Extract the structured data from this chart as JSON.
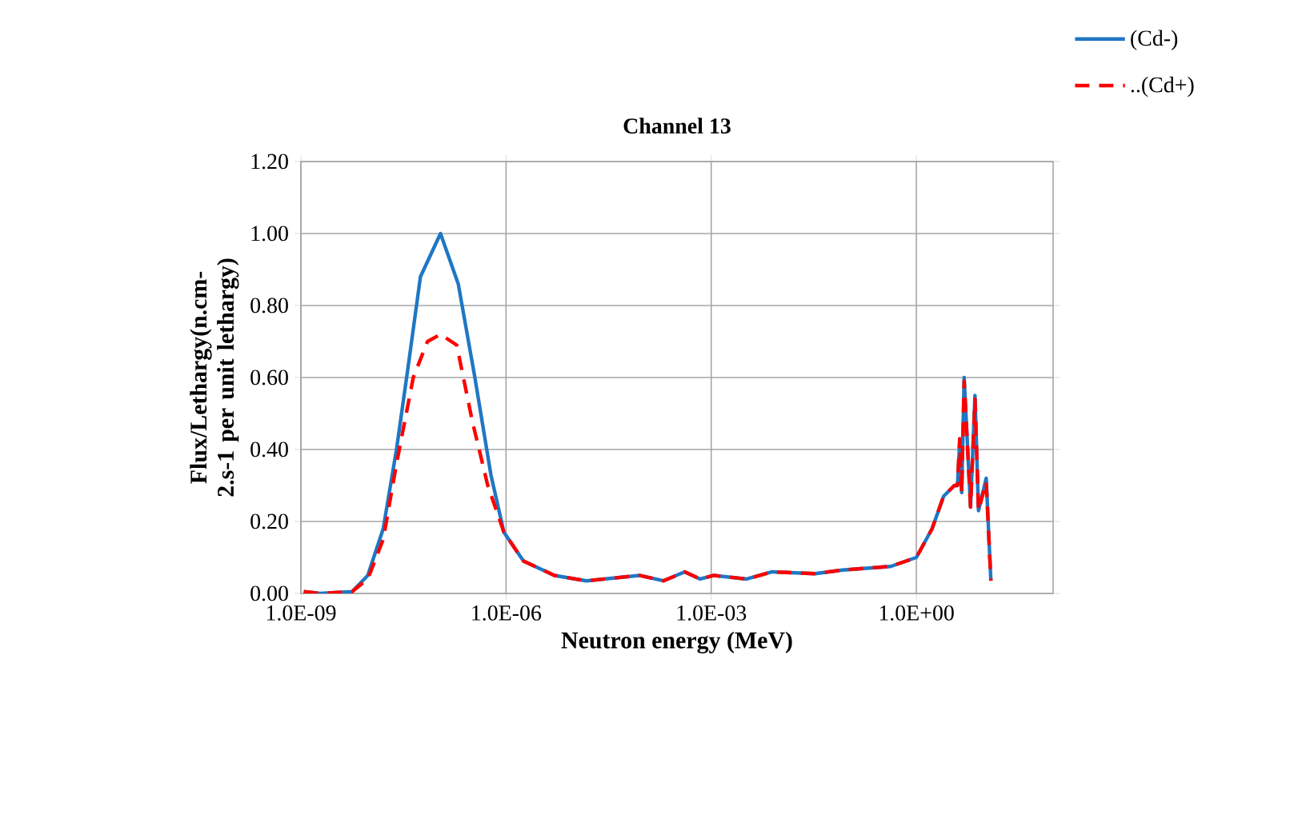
{
  "chart_data": {
    "type": "line",
    "title": "Channel 13",
    "xlabel": "Neutron energy (MeV)",
    "ylabel": "Flux/Lethargy(n.cm-2.s-1 per unit lethargy)",
    "log": "x",
    "xlim": [
      1e-09,
      100
    ],
    "ylim": [
      0,
      1.2
    ],
    "xticks": [
      {
        "value": 1e-09,
        "label": "1.0E-09"
      },
      {
        "value": 1e-06,
        "label": "1.0E-06"
      },
      {
        "value": 0.001,
        "label": "1.0E-03"
      },
      {
        "value": 1,
        "label": "1.0E+00"
      }
    ],
    "yticks": [
      {
        "value": 0,
        "label": "0.00"
      },
      {
        "value": 0.2,
        "label": "0.20"
      },
      {
        "value": 0.4,
        "label": "0.40"
      },
      {
        "value": 0.6,
        "label": "0.60"
      },
      {
        "value": 0.8,
        "label": "0.80"
      },
      {
        "value": 1.0,
        "label": "1.00"
      },
      {
        "value": 1.2,
        "label": "1.20"
      }
    ],
    "grid": true,
    "legend": "top right",
    "marker": "none",
    "series": [
      {
        "name": "(Cd-)",
        "color": "#1f77c4",
        "line_style": "solid",
        "x": [
          1.1e-09,
          1.9e-09,
          5.6e-09,
          9.5e-09,
          1.6e-08,
          2.5e-08,
          3.7e-08,
          5.6e-08,
          1.1e-07,
          2e-07,
          3.5e-07,
          6e-07,
          9.3e-07,
          1.8e-06,
          5.1e-06,
          1.5e-05,
          8.9e-05,
          0.0002,
          0.00041,
          0.00069,
          0.0011,
          0.0033,
          0.0078,
          0.033,
          0.083,
          0.42,
          1.0,
          1.7,
          2.5,
          3.6,
          4.0,
          4.3,
          4.6,
          5.0,
          6.2,
          7.2,
          8.1,
          10.5,
          12.3
        ],
        "values": [
          0.005,
          0,
          0.005,
          0.05,
          0.18,
          0.4,
          0.63,
          0.88,
          1.0,
          0.86,
          0.6,
          0.33,
          0.17,
          0.09,
          0.05,
          0.035,
          0.05,
          0.035,
          0.06,
          0.04,
          0.05,
          0.04,
          0.06,
          0.055,
          0.065,
          0.075,
          0.1,
          0.18,
          0.27,
          0.3,
          0.3,
          0.42,
          0.28,
          0.6,
          0.24,
          0.55,
          0.23,
          0.32,
          0.035
        ]
      },
      {
        "name": "..(Cd+)",
        "color": "#ff0000",
        "line_style": "dashed",
        "x": [
          1.1e-09,
          1.9e-09,
          5.6e-09,
          9.5e-09,
          1.6e-08,
          2.5e-08,
          4.4e-08,
          7.1e-08,
          1.1e-07,
          1.9e-07,
          3.2e-07,
          5.4e-07,
          9.3e-07,
          1.8e-06,
          5.1e-06,
          1.5e-05,
          8.9e-05,
          0.0002,
          0.00041,
          0.00069,
          0.0011,
          0.0033,
          0.0078,
          0.033,
          0.083,
          0.42,
          1.0,
          1.7,
          2.5,
          3.6,
          4.0,
          4.3,
          4.6,
          5.0,
          6.2,
          7.2,
          8.1,
          10.5,
          12.3
        ],
        "values": [
          0.005,
          0,
          0.005,
          0.04,
          0.15,
          0.36,
          0.6,
          0.7,
          0.72,
          0.69,
          0.48,
          0.3,
          0.17,
          0.09,
          0.05,
          0.035,
          0.05,
          0.035,
          0.06,
          0.04,
          0.05,
          0.04,
          0.06,
          0.055,
          0.065,
          0.075,
          0.1,
          0.18,
          0.27,
          0.3,
          0.3,
          0.43,
          0.28,
          0.59,
          0.24,
          0.54,
          0.23,
          0.31,
          0.035
        ]
      }
    ]
  }
}
